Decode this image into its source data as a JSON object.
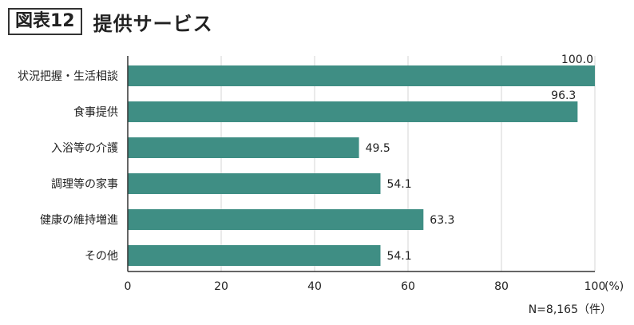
{
  "header": {
    "figure_label": "図表12",
    "title": "提供サービス"
  },
  "note": "N=8,165（件）",
  "colors": {
    "bar": "#3f8e84",
    "grid": "#d4d4d4",
    "axis": "#333333"
  },
  "chart_data": {
    "type": "bar",
    "orientation": "horizontal",
    "title": "提供サービス",
    "categories": [
      "状況把握・生活相談",
      "食事提供",
      "入浴等の介護",
      "調理等の家事",
      "健康の維持増進",
      "その他"
    ],
    "values": [
      100.0,
      96.3,
      49.5,
      54.1,
      63.3,
      54.1
    ],
    "value_labels": [
      "100.0",
      "96.3",
      "49.5",
      "54.1",
      "63.3",
      "54.1"
    ],
    "xlim": [
      0,
      100
    ],
    "xticks": [
      "0",
      "20",
      "40",
      "60",
      "80",
      "100"
    ],
    "x_unit": "(%)",
    "grid": true
  }
}
